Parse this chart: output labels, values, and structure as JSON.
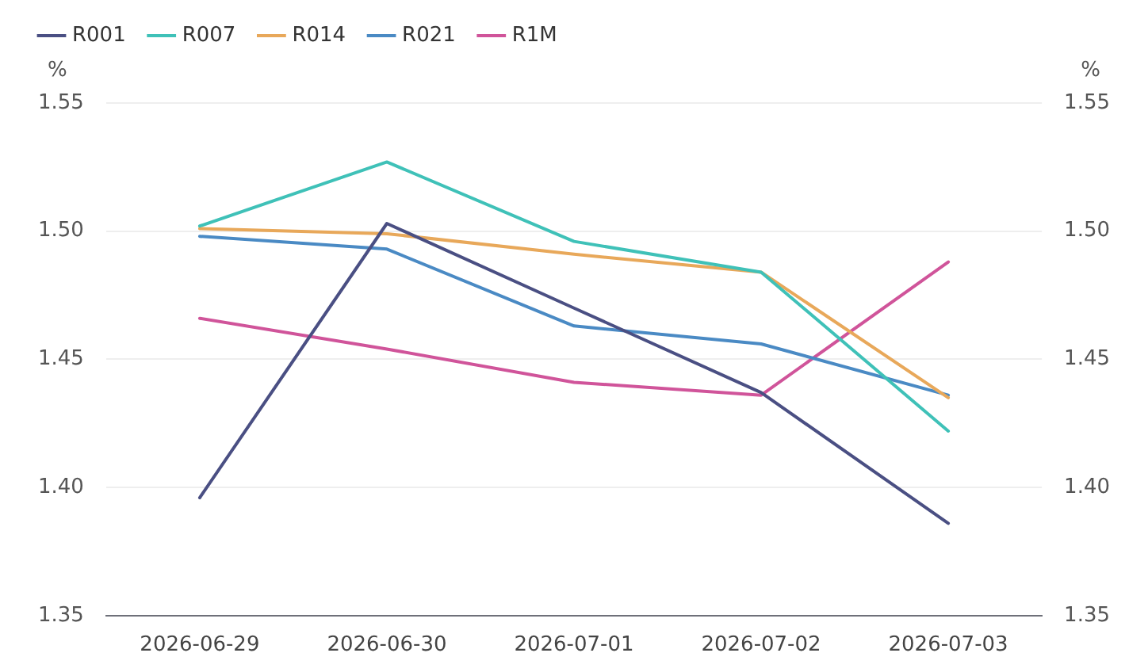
{
  "chart_data": {
    "type": "line",
    "categories": [
      "2026-06-29",
      "2026-06-30",
      "2026-07-01",
      "2026-07-02",
      "2026-07-03"
    ],
    "series": [
      {
        "name": "R001",
        "color": "#4a4f83",
        "values": [
          1.396,
          1.503,
          1.47,
          1.437,
          1.386
        ]
      },
      {
        "name": "R007",
        "color": "#3fc1b8",
        "values": [
          1.502,
          1.527,
          1.496,
          1.484,
          1.422
        ]
      },
      {
        "name": "R014",
        "color": "#e8a85a",
        "values": [
          1.501,
          1.499,
          1.491,
          1.484,
          1.435
        ]
      },
      {
        "name": "R021",
        "color": "#4a8ac4",
        "values": [
          1.498,
          1.493,
          1.463,
          1.456,
          1.436
        ]
      },
      {
        "name": "R1M",
        "color": "#d0549a",
        "values": [
          1.466,
          1.454,
          1.441,
          1.436,
          1.488
        ]
      }
    ],
    "ylabel": "%",
    "y2label": "%",
    "ylim": [
      1.35,
      1.55
    ],
    "yticks": [
      1.35,
      {
        "value": 1.4,
        "label": "1.40"
      },
      1.45,
      {
        "value": 1.5,
        "label": "1.50"
      },
      1.55
    ],
    "y2lim": [
      1.35,
      1.55
    ],
    "y2ticks": [
      1.35,
      {
        "value": 1.4,
        "label": "1.40"
      },
      1.45,
      {
        "value": 1.5,
        "label": "1.50"
      },
      1.55
    ],
    "grid": "y",
    "legend": "top left",
    "marker": "none",
    "line_style": "solid"
  }
}
